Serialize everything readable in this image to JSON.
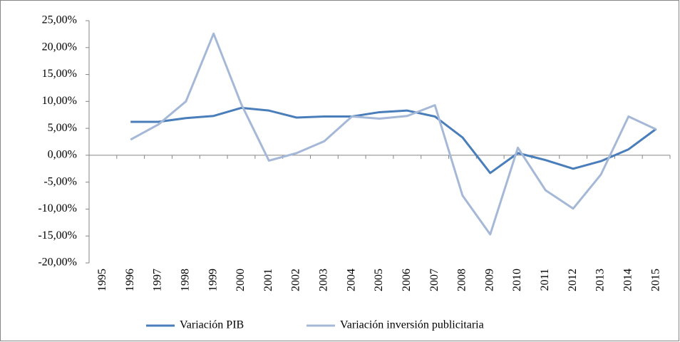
{
  "chart_data": {
    "type": "line",
    "categories": [
      "1995",
      "1996",
      "1997",
      "1998",
      "1999",
      "2000",
      "2001",
      "2002",
      "2003",
      "2004",
      "2005",
      "2006",
      "2007",
      "2008",
      "2009",
      "2010",
      "2011",
      "2012",
      "2013",
      "2014",
      "2015"
    ],
    "series": [
      {
        "name": "Variación PIB",
        "color": "#4a7ebb",
        "values": [
          null,
          6.2,
          6.2,
          6.9,
          7.3,
          8.8,
          8.3,
          7.0,
          7.2,
          7.2,
          8.0,
          8.3,
          7.2,
          3.3,
          -3.3,
          0.4,
          -0.9,
          -2.5,
          -1.1,
          1.1,
          4.9
        ]
      },
      {
        "name": "Variación inversión publicitaria",
        "color": "#a5b8d7",
        "values": [
          null,
          2.9,
          5.7,
          10.0,
          22.6,
          9.5,
          -1.0,
          0.4,
          2.6,
          7.2,
          6.8,
          7.3,
          9.3,
          -7.5,
          -14.7,
          1.4,
          -6.5,
          -9.9,
          -3.6,
          7.2,
          4.8
        ]
      }
    ],
    "ylim": [
      -20,
      25
    ],
    "yticks": [
      {
        "value": -20,
        "label": "-20,00%"
      },
      {
        "value": -15,
        "label": "-15,00%"
      },
      {
        "value": -10,
        "label": "-10,00%"
      },
      {
        "value": -5,
        "label": "-5,00%"
      },
      {
        "value": 0,
        "label": "0,00%"
      },
      {
        "value": 5,
        "label": "5,00%"
      },
      {
        "value": 10,
        "label": "10,00%"
      },
      {
        "value": 15,
        "label": "15,00%"
      },
      {
        "value": 20,
        "label": "20,00%"
      },
      {
        "value": 25,
        "label": "25,00%"
      }
    ],
    "grid": false,
    "legend": "bottom"
  }
}
